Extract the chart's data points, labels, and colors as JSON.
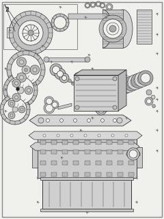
{
  "bg_color": "#f0f0ec",
  "border_color": "#999999",
  "line_color": "#333333",
  "part_fill": "#d8d8d8",
  "part_dark": "#aaaaaa",
  "part_light": "#ececec",
  "text_color": "#111111",
  "fig_width": 2.4,
  "fig_height": 3.2,
  "dpi": 100,
  "label_2": "2"
}
